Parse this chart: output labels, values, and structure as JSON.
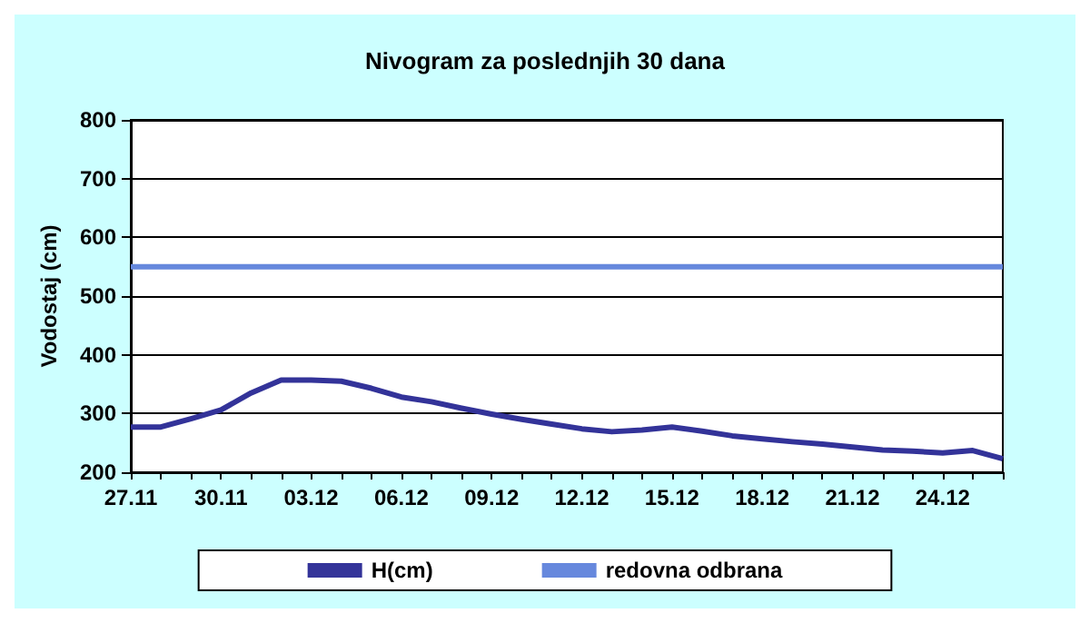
{
  "chart_data": {
    "type": "line",
    "title": "Nivogram za poslednjih 30 dana",
    "ylabel": "Vodostaj (cm)",
    "categories": [
      "27.11",
      null,
      null,
      "30.11",
      null,
      null,
      "03.12",
      null,
      null,
      "06.12",
      null,
      null,
      "09.12",
      null,
      null,
      "12.12",
      null,
      null,
      "15.12",
      null,
      null,
      "18.12",
      null,
      null,
      "21.12",
      null,
      null,
      "24.12",
      null,
      null
    ],
    "series": [
      {
        "name": "H(cm)",
        "color": "#333399",
        "values": [
          277,
          277,
          291,
          306,
          335,
          357,
          357,
          355,
          343,
          328,
          320,
          309,
          299,
          290,
          282,
          274,
          269,
          272,
          277,
          270,
          262,
          257,
          252,
          248,
          243,
          238,
          236,
          233,
          237,
          223
        ]
      },
      {
        "name": "redovna odbrana",
        "color": "#6688dd",
        "values": [
          550,
          550,
          550,
          550,
          550,
          550,
          550,
          550,
          550,
          550,
          550,
          550,
          550,
          550,
          550,
          550,
          550,
          550,
          550,
          550,
          550,
          550,
          550,
          550,
          550,
          550,
          550,
          550,
          550,
          550
        ]
      }
    ],
    "ylim": [
      200,
      800
    ],
    "yticks": [
      200,
      300,
      400,
      500,
      600,
      700,
      800
    ],
    "grid": "y",
    "legend": "bottom",
    "marker": "none"
  }
}
